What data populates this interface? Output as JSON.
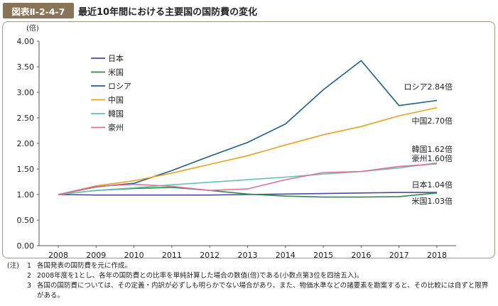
{
  "header": {
    "tag": "図表Ⅱ-2-4-7",
    "title": "最近10年間における主要国の国防費の変化"
  },
  "chart_data": {
    "type": "line",
    "title": "最近10年間における主要国の国防費の変化",
    "ylabel": "(倍)",
    "xlabel": "",
    "x": [
      "2008",
      "2009",
      "2010",
      "2011",
      "2012",
      "2013",
      "2014",
      "2015",
      "2016",
      "2017",
      "2018"
    ],
    "ylim": [
      0,
      4
    ],
    "yticks": [
      "0.00",
      "0.50",
      "1.00",
      "1.50",
      "2.00",
      "2.50",
      "3.00",
      "3.50",
      "4.00"
    ],
    "grid": false,
    "legend_position": "top-left",
    "series": [
      {
        "name": "日本",
        "color": "#4a4aa8",
        "values": [
          1.0,
          0.99,
          0.99,
          0.99,
          0.99,
          1.0,
          1.01,
          1.02,
          1.03,
          1.04,
          1.04
        ],
        "end_label": "日本1.04倍"
      },
      {
        "name": "米国",
        "color": "#2e8b45",
        "values": [
          1.0,
          1.08,
          1.12,
          1.14,
          1.08,
          1.01,
          0.97,
          0.95,
          0.95,
          0.96,
          1.03
        ],
        "end_label": "米国1.03倍"
      },
      {
        "name": "ロシア",
        "color": "#1f5f8b",
        "values": [
          1.0,
          1.15,
          1.22,
          1.47,
          1.75,
          2.02,
          2.38,
          3.05,
          3.62,
          2.74,
          2.84
        ],
        "end_label": "ロシア2.84倍"
      },
      {
        "name": "中国",
        "color": "#f0a020",
        "values": [
          1.0,
          1.17,
          1.27,
          1.42,
          1.59,
          1.76,
          1.97,
          2.17,
          2.33,
          2.54,
          2.7
        ],
        "end_label": "中国2.70倍"
      },
      {
        "name": "韓国",
        "color": "#66c4b0",
        "values": [
          1.0,
          1.08,
          1.13,
          1.19,
          1.24,
          1.29,
          1.34,
          1.4,
          1.45,
          1.52,
          1.62
        ],
        "end_label": "韓国1.62倍"
      },
      {
        "name": "豪州",
        "color": "#e0709a",
        "values": [
          1.0,
          1.16,
          1.2,
          1.16,
          1.08,
          1.11,
          1.29,
          1.43,
          1.45,
          1.55,
          1.6
        ],
        "end_label": "豪州1.60倍"
      }
    ]
  },
  "notes": [
    {
      "key": "(注)",
      "num": "1",
      "text": "各国発表の国防費を元に作成。"
    },
    {
      "key": "",
      "num": "2",
      "text": "2008年度を1とし、各年の国防費との比率を単純計算した場合の数值(倍)である(小数点第3位を四捨五入)。"
    },
    {
      "key": "",
      "num": "3",
      "text": "各国の国防費については、その定義・内訳が必ずしも明らかでない場合があり、また、物価水準などの諸要素を勘案すると、その比較には自ずと限界がある。"
    }
  ]
}
